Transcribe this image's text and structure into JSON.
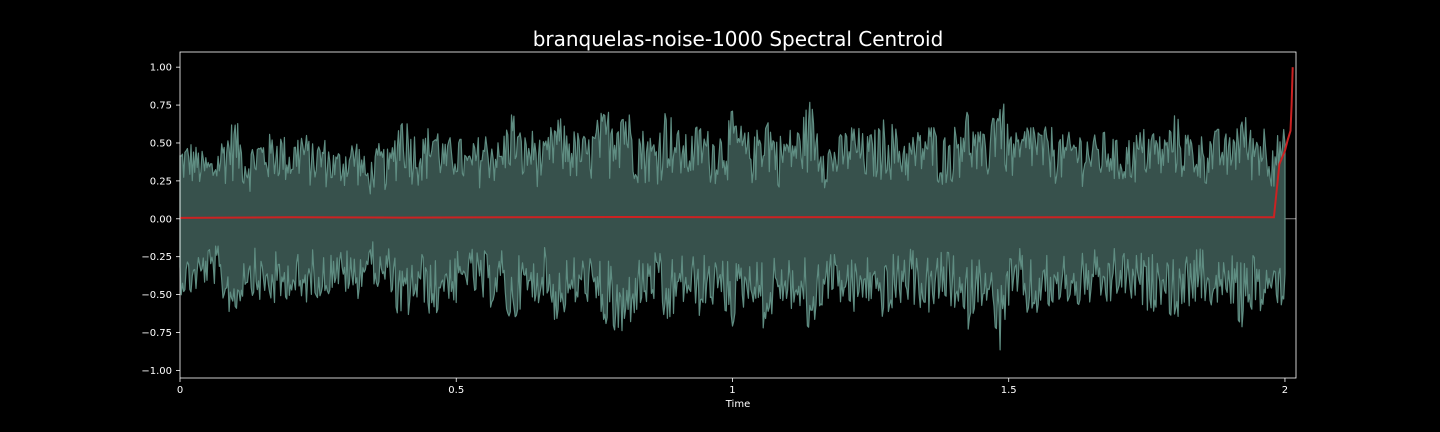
{
  "chart_data": {
    "type": "line",
    "title": "branquelas-noise-1000 Spectral Centroid",
    "xlabel": "Time",
    "ylabel": "",
    "xlim": [
      0,
      2.02
    ],
    "ylim": [
      -1.05,
      1.1
    ],
    "x_ticks": [
      0,
      0.5,
      1,
      1.5,
      2
    ],
    "x_tick_labels": [
      "0",
      "0.5",
      "1",
      "1.5",
      "2"
    ],
    "y_ticks": [
      -1.0,
      -0.75,
      -0.5,
      -0.25,
      0.0,
      0.25,
      0.5,
      0.75,
      1.0
    ],
    "y_tick_labels": [
      "−1.00",
      "−0.75",
      "−0.50",
      "−0.25",
      "0.00",
      "0.25",
      "0.50",
      "0.75",
      "1.00"
    ],
    "grid": false,
    "background_color": "#000000",
    "waveform": {
      "duration": 2.0,
      "approx_peak_envelope": [
        [
          0.0,
          0.5
        ],
        [
          0.02,
          0.52
        ],
        [
          0.04,
          0.45
        ],
        [
          0.06,
          0.42
        ],
        [
          0.08,
          0.58
        ],
        [
          0.1,
          0.68
        ],
        [
          0.12,
          0.45
        ],
        [
          0.14,
          0.55
        ],
        [
          0.16,
          0.56
        ],
        [
          0.18,
          0.6
        ],
        [
          0.2,
          0.5
        ],
        [
          0.22,
          0.62
        ],
        [
          0.24,
          0.5
        ],
        [
          0.26,
          0.55
        ],
        [
          0.28,
          0.45
        ],
        [
          0.3,
          0.5
        ],
        [
          0.32,
          0.55
        ],
        [
          0.34,
          0.35
        ],
        [
          0.36,
          0.5
        ],
        [
          0.38,
          0.45
        ],
        [
          0.4,
          0.77
        ],
        [
          0.42,
          0.6
        ],
        [
          0.44,
          0.55
        ],
        [
          0.46,
          0.7
        ],
        [
          0.48,
          0.5
        ],
        [
          0.5,
          0.6
        ],
        [
          0.52,
          0.45
        ],
        [
          0.54,
          0.55
        ],
        [
          0.56,
          0.6
        ],
        [
          0.58,
          0.5
        ],
        [
          0.6,
          0.76
        ],
        [
          0.62,
          0.55
        ],
        [
          0.64,
          0.6
        ],
        [
          0.66,
          0.5
        ],
        [
          0.68,
          0.7
        ],
        [
          0.7,
          0.62
        ],
        [
          0.72,
          0.58
        ],
        [
          0.74,
          0.55
        ],
        [
          0.76,
          0.7
        ],
        [
          0.78,
          0.75
        ],
        [
          0.8,
          0.87
        ],
        [
          0.82,
          0.65
        ],
        [
          0.84,
          0.6
        ],
        [
          0.86,
          0.55
        ],
        [
          0.88,
          0.77
        ],
        [
          0.9,
          0.6
        ],
        [
          0.92,
          0.55
        ],
        [
          0.94,
          0.65
        ],
        [
          0.96,
          0.58
        ],
        [
          0.98,
          0.6
        ],
        [
          1.0,
          0.72
        ],
        [
          1.02,
          0.6
        ],
        [
          1.04,
          0.55
        ],
        [
          1.06,
          0.78
        ],
        [
          1.08,
          0.55
        ],
        [
          1.1,
          0.6
        ],
        [
          1.12,
          0.62
        ],
        [
          1.14,
          0.8
        ],
        [
          1.16,
          0.6
        ],
        [
          1.18,
          0.5
        ],
        [
          1.2,
          0.58
        ],
        [
          1.22,
          0.65
        ],
        [
          1.24,
          0.55
        ],
        [
          1.26,
          0.6
        ],
        [
          1.28,
          0.7
        ],
        [
          1.3,
          0.58
        ],
        [
          1.32,
          0.55
        ],
        [
          1.34,
          0.6
        ],
        [
          1.36,
          0.65
        ],
        [
          1.38,
          0.55
        ],
        [
          1.4,
          0.6
        ],
        [
          1.42,
          0.8
        ],
        [
          1.44,
          0.6
        ],
        [
          1.46,
          0.55
        ],
        [
          1.48,
          0.96
        ],
        [
          1.5,
          0.6
        ],
        [
          1.52,
          0.55
        ],
        [
          1.54,
          0.7
        ],
        [
          1.56,
          0.6
        ],
        [
          1.58,
          0.62
        ],
        [
          1.6,
          0.55
        ],
        [
          1.62,
          0.6
        ],
        [
          1.64,
          0.58
        ],
        [
          1.66,
          0.55
        ],
        [
          1.68,
          0.6
        ],
        [
          1.7,
          0.5
        ],
        [
          1.72,
          0.55
        ],
        [
          1.74,
          0.6
        ],
        [
          1.76,
          0.62
        ],
        [
          1.78,
          0.55
        ],
        [
          1.8,
          0.7
        ],
        [
          1.82,
          0.6
        ],
        [
          1.84,
          0.55
        ],
        [
          1.86,
          0.58
        ],
        [
          1.88,
          0.6
        ],
        [
          1.9,
          0.55
        ],
        [
          1.92,
          0.75
        ],
        [
          1.94,
          0.6
        ],
        [
          1.96,
          0.65
        ],
        [
          1.98,
          0.55
        ],
        [
          2.0,
          0.6
        ]
      ],
      "fill_color": "#37514c",
      "stroke_color": "#5f8d82"
    },
    "series": [
      {
        "values_xy": [
          [
            0.0,
            0.006
          ],
          [
            0.2,
            0.01
          ],
          [
            0.4,
            0.008
          ],
          [
            0.6,
            0.01
          ],
          [
            0.8,
            0.012
          ],
          [
            1.0,
            0.01
          ],
          [
            1.2,
            0.011
          ],
          [
            1.4,
            0.009
          ],
          [
            1.6,
            0.01
          ],
          [
            1.8,
            0.012
          ],
          [
            1.98,
            0.01
          ],
          [
            1.99,
            0.36
          ],
          [
            2.0,
            0.45
          ],
          [
            2.005,
            0.52
          ],
          [
            2.01,
            0.58
          ],
          [
            2.012,
            0.75
          ],
          [
            2.014,
            1.0
          ]
        ],
        "color": "#cc2222"
      }
    ]
  }
}
